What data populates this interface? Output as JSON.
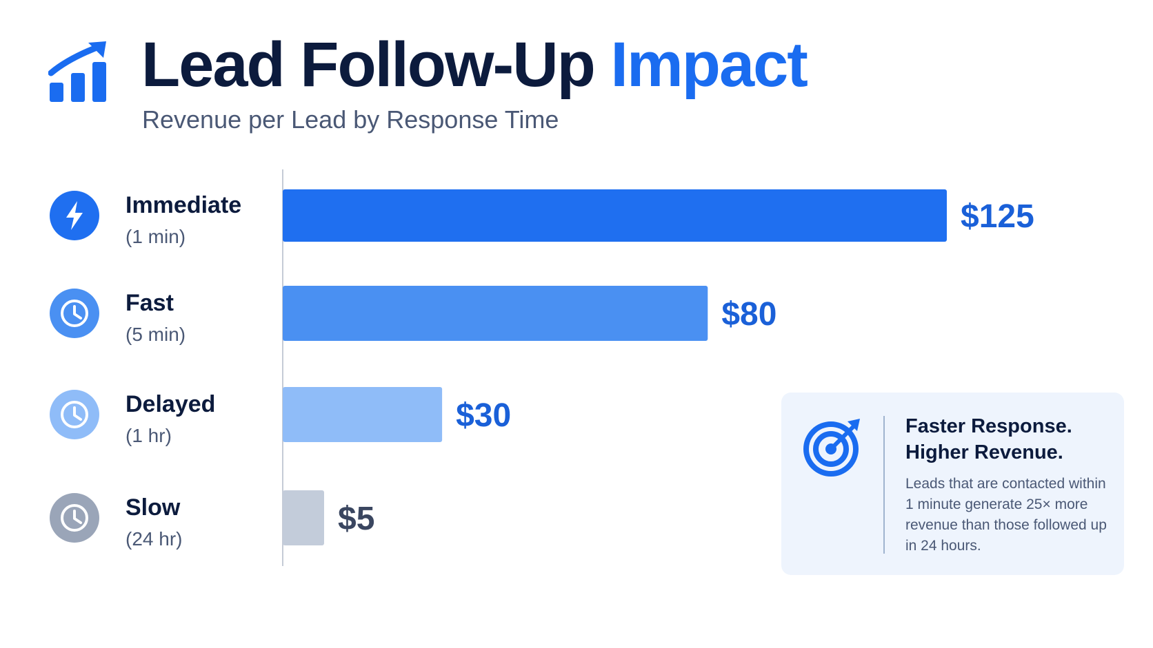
{
  "header": {
    "title_main": "Lead Follow-Up ",
    "title_accent": "Impact",
    "subtitle": "Revenue per Lead by Response Time",
    "icon": "chart-up-icon"
  },
  "chart_data": {
    "type": "bar",
    "orientation": "horizontal",
    "title": "Lead Follow-Up Impact",
    "subtitle": "Revenue per Lead by Response Time",
    "categories": [
      "Immediate",
      "Fast",
      "Delayed",
      "Slow"
    ],
    "sublabels": [
      "(1 min)",
      "(5 min)",
      "(1 hr)",
      "(24 hr)"
    ],
    "values": [
      125,
      80,
      30,
      5
    ],
    "value_labels": [
      "$125",
      "$80",
      "$30",
      "$5"
    ],
    "icons": [
      "lightning-icon",
      "clock-icon",
      "clock-icon",
      "clock-icon"
    ],
    "bar_colors": [
      "#1f6ff0",
      "#4a90f2",
      "#8fbcf8",
      "#c3ccda"
    ],
    "icon_colors": [
      "#1f6ff0",
      "#4a90f2",
      "#8fbcf8",
      "#9aa5b8"
    ],
    "value_label_colors": [
      "#1a60d8",
      "#1a60d8",
      "#1a60d8",
      "#3a4660"
    ],
    "xlim": [
      0,
      125
    ],
    "grid": false,
    "legend": "none"
  },
  "callout": {
    "icon": "target-icon",
    "heading_line1": "Faster Response.",
    "heading_line2": "Higher Revenue.",
    "body": "Leads that are contacted within 1 minute generate 25× more revenue than those followed up in 24 hours."
  },
  "colors": {
    "accent": "#1a6cf0",
    "title": "#0c1b3d",
    "muted": "#4a5875",
    "callout_bg": "#eef4fd"
  }
}
